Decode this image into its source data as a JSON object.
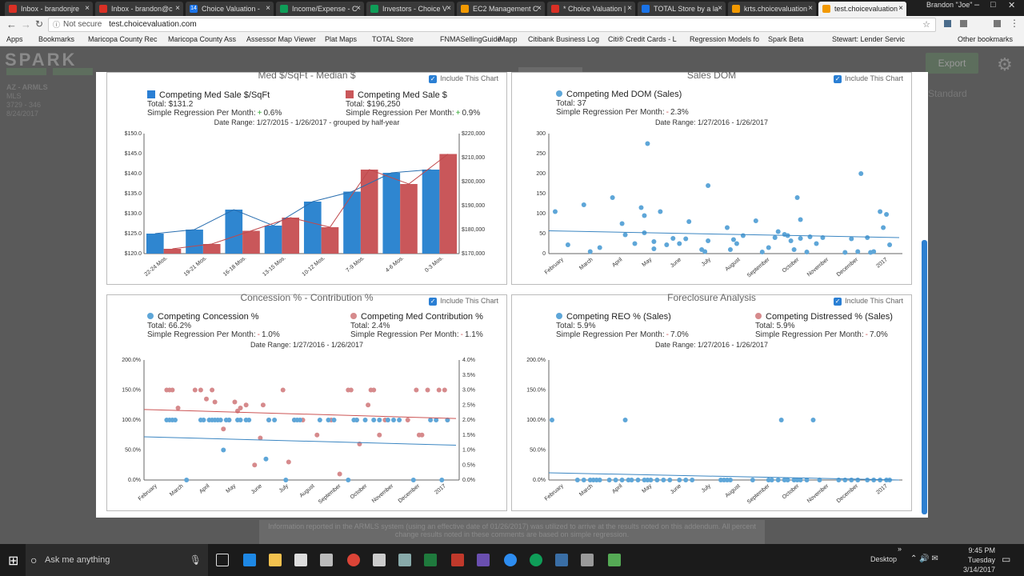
{
  "browser": {
    "tabs": [
      {
        "title": "Inbox - brandonjre",
        "color": "#d93025"
      },
      {
        "title": "Inbox - brandon@c",
        "color": "#d93025"
      },
      {
        "title": "Choice Valuation -",
        "color": "#1a73e8",
        "prefix": "14"
      },
      {
        "title": "Income/Expense - C",
        "color": "#0f9d58"
      },
      {
        "title": "Investors - Choice V",
        "color": "#0f9d58"
      },
      {
        "title": "EC2 Management C",
        "color": "#f29900"
      },
      {
        "title": "* Choice Valuation |",
        "color": "#d93025"
      },
      {
        "title": "TOTAL Store by a la",
        "color": "#1a73e8"
      },
      {
        "title": "krts.choicevaluation",
        "color": "#f29900"
      },
      {
        "title": "test.choicevaluation",
        "color": "#f29900"
      }
    ],
    "user": "Brandon \"Joe\"",
    "not_secure": "Not secure",
    "url": "test.choicevaluation.com",
    "bookmarks": [
      "Apps",
      "Bookmarks",
      "Maricopa County Rec",
      "Maricopa County Ass",
      "Assessor Map Viewer",
      "Plat Maps",
      "TOTAL Store",
      "FNMASellingGuide",
      "iMapp",
      "Citibank Business Log",
      "Citi® Credit Cards - L",
      "Regression Models fo",
      "Spark Beta",
      "Stewart: Lender Servic",
      "Other bookmarks"
    ]
  },
  "app": {
    "logo": "SPARK",
    "export_label": "Export",
    "left_info": [
      "AZ - ARMLS",
      "MLS",
      "3729 - 346",
      "8/24/2017"
    ],
    "right_info": "Standard"
  },
  "include_label": "Include This Chart",
  "panels": [
    {
      "title": "Med $/SqFt - Median $",
      "legend": [
        {
          "name": "Competing Med Sale $/SqFt",
          "total": "Total: $131.2",
          "reg_label": "Simple Regression Per Month:",
          "reg_value": "0.6%",
          "color": "#2a7fd4"
        },
        {
          "name": "Competing Med Sale $",
          "total": "Total: $196,250",
          "reg_label": "Simple Regression Per Month:",
          "reg_value": "0.9%",
          "color": "#c9575a"
        }
      ],
      "date_range": "Date Range: 1/27/2015 - 1/26/2017 - grouped by half-year"
    },
    {
      "title": "Sales DOM",
      "legend": [
        {
          "name": "Competing Med DOM (Sales)",
          "total": "Total: 37",
          "reg_label": "Simple Regression Per Month:",
          "reg_value": "2.3%",
          "color": "#5ea6d8"
        }
      ],
      "date_range": "Date Range: 1/27/2016 - 1/26/2017"
    },
    {
      "title": "Concession % - Contribution %",
      "legend": [
        {
          "name": "Competing Concession %",
          "total": "Total: 66.2%",
          "reg_label": "Simple Regression Per Month:",
          "reg_value": "1.0%",
          "color": "#5ea6d8"
        },
        {
          "name": "Competing Med Contribution %",
          "total": "Total: 2.4%",
          "reg_label": "Simple Regression Per Month:",
          "reg_value": "1.1%",
          "color": "#d68a8c"
        }
      ],
      "date_range": "Date Range: 1/27/2016 - 1/26/2017"
    },
    {
      "title": "Foreclosure Analysis",
      "legend": [
        {
          "name": "Competing REO % (Sales)",
          "total": "Total: 5.9%",
          "reg_label": "Simple Regression Per Month:",
          "reg_value": "7.0%",
          "color": "#5ea6d8"
        },
        {
          "name": "Competing Distressed % (Sales)",
          "total": "Total: 5.9%",
          "reg_label": "Simple Regression Per Month:",
          "reg_value": "7.0%",
          "color": "#d68a8c"
        }
      ],
      "date_range": "Date Range: 1/27/2016 - 1/26/2017"
    }
  ],
  "chart_data": [
    {
      "type": "bar",
      "categories": [
        "22-24 Mos.",
        "19-21 Mos.",
        "16-18 Mos.",
        "13-15 Mos.",
        "10-12 Mos.",
        "7-9 Mos.",
        "4-6 Mos.",
        "0-3 Mos."
      ],
      "series": [
        {
          "name": "Competing Med Sale $/SqFt",
          "axis": "left",
          "values": [
            125,
            126,
            131,
            127,
            133,
            135.5,
            140.2,
            141
          ]
        },
        {
          "name": "Competing Med Sale $",
          "axis": "right",
          "values": [
            172000,
            174000,
            179500,
            185000,
            181000,
            205000,
            199000,
            211500
          ]
        }
      ],
      "ylim_left": [
        120,
        150
      ],
      "yticks_left": [
        "$120.0",
        "$125.0",
        "$130.0",
        "$135.0",
        "$140.0",
        "$145.0",
        "$150.0"
      ],
      "ylim_right": [
        170000,
        220000
      ],
      "yticks_right": [
        "$170,000",
        "$180,000",
        "$190,000",
        "$200,000",
        "$210,000",
        "$220,000"
      ]
    },
    {
      "type": "scatter",
      "xlabels": [
        "February",
        "March",
        "April",
        "May",
        "June",
        "July",
        "August",
        "September",
        "October",
        "November",
        "December",
        "2017"
      ],
      "ylim": [
        0,
        300
      ],
      "yticks": [
        "0",
        "50",
        "100",
        "150",
        "200",
        "250",
        "300"
      ],
      "points": [
        [
          0.2,
          105
        ],
        [
          0.6,
          22
        ],
        [
          1.1,
          122
        ],
        [
          1.3,
          5
        ],
        [
          1.6,
          15
        ],
        [
          2.0,
          140
        ],
        [
          2.3,
          75
        ],
        [
          2.4,
          47
        ],
        [
          2.7,
          25
        ],
        [
          2.9,
          115
        ],
        [
          3.0,
          95
        ],
        [
          3.0,
          52
        ],
        [
          3.1,
          275
        ],
        [
          3.3,
          30
        ],
        [
          3.3,
          12
        ],
        [
          3.5,
          105
        ],
        [
          3.7,
          22
        ],
        [
          3.9,
          38
        ],
        [
          4.1,
          25
        ],
        [
          4.3,
          37
        ],
        [
          4.4,
          80
        ],
        [
          4.8,
          10
        ],
        [
          4.9,
          5
        ],
        [
          5.0,
          170
        ],
        [
          5.0,
          32
        ],
        [
          5.6,
          65
        ],
        [
          5.7,
          10
        ],
        [
          5.8,
          35
        ],
        [
          5.9,
          25
        ],
        [
          6.1,
          45
        ],
        [
          6.5,
          82
        ],
        [
          6.7,
          4
        ],
        [
          6.9,
          15
        ],
        [
          7.1,
          40
        ],
        [
          7.2,
          55
        ],
        [
          7.4,
          48
        ],
        [
          7.5,
          45
        ],
        [
          7.6,
          32
        ],
        [
          7.7,
          10
        ],
        [
          7.8,
          140
        ],
        [
          7.9,
          38
        ],
        [
          7.9,
          85
        ],
        [
          8.1,
          4
        ],
        [
          8.2,
          42
        ],
        [
          8.4,
          25
        ],
        [
          8.6,
          40
        ],
        [
          9.3,
          3
        ],
        [
          9.5,
          37
        ],
        [
          9.7,
          5
        ],
        [
          9.8,
          200
        ],
        [
          10.0,
          40
        ],
        [
          10.1,
          3
        ],
        [
          10.2,
          5
        ],
        [
          10.4,
          105
        ],
        [
          10.5,
          65
        ],
        [
          10.6,
          98
        ],
        [
          10.7,
          22
        ]
      ],
      "trend": [
        57,
        40
      ]
    },
    {
      "type": "scatter",
      "xlabels": [
        "February",
        "March",
        "April",
        "May",
        "June",
        "July",
        "August",
        "September",
        "October",
        "November",
        "December",
        "2017"
      ],
      "ylim_left": [
        0,
        200
      ],
      "yticks_left": [
        "0.0%",
        "50.0%",
        "100.0%",
        "150.0%",
        "200.0%"
      ],
      "ylim_right": [
        0,
        4
      ],
      "yticks_right": [
        "0.0%",
        "0.5%",
        "1.0%",
        "1.5%",
        "2.0%",
        "2.5%",
        "3.0%",
        "3.5%",
        "4.0%"
      ],
      "series": [
        {
          "name": "Competing Concession %",
          "axis": "left",
          "points": [
            [
              0.8,
              100
            ],
            [
              0.9,
              100
            ],
            [
              1.0,
              100
            ],
            [
              1.1,
              100
            ],
            [
              1.5,
              0
            ],
            [
              2.0,
              100
            ],
            [
              2.1,
              100
            ],
            [
              2.3,
              100
            ],
            [
              2.4,
              100
            ],
            [
              2.5,
              100
            ],
            [
              2.6,
              100
            ],
            [
              2.7,
              100
            ],
            [
              2.8,
              50
            ],
            [
              2.9,
              100
            ],
            [
              3.0,
              100
            ],
            [
              3.3,
              100
            ],
            [
              3.4,
              100
            ],
            [
              3.6,
              100
            ],
            [
              3.7,
              100
            ],
            [
              4.3,
              35
            ],
            [
              4.4,
              100
            ],
            [
              4.6,
              100
            ],
            [
              5.0,
              0
            ],
            [
              5.3,
              100
            ],
            [
              5.4,
              100
            ],
            [
              5.5,
              100
            ],
            [
              6.2,
              100
            ],
            [
              6.5,
              100
            ],
            [
              6.7,
              100
            ],
            [
              7.2,
              0
            ],
            [
              7.4,
              100
            ],
            [
              7.5,
              100
            ],
            [
              7.8,
              100
            ],
            [
              8.1,
              100
            ],
            [
              8.3,
              100
            ],
            [
              8.6,
              100
            ],
            [
              8.8,
              100
            ],
            [
              9.0,
              100
            ],
            [
              9.5,
              0
            ],
            [
              10.1,
              100
            ],
            [
              10.3,
              100
            ],
            [
              10.5,
              0
            ],
            [
              10.7,
              100
            ]
          ],
          "trend": [
            72,
            58
          ]
        },
        {
          "name": "Competing Med Contribution %",
          "axis": "right",
          "points": [
            [
              0.8,
              3.0
            ],
            [
              0.9,
              3.0
            ],
            [
              1.0,
              3.0
            ],
            [
              1.2,
              2.4
            ],
            [
              1.8,
              3.0
            ],
            [
              2.0,
              3.0
            ],
            [
              2.2,
              2.7
            ],
            [
              2.4,
              3.0
            ],
            [
              2.5,
              2.6
            ],
            [
              2.8,
              1.7
            ],
            [
              3.0,
              2.0
            ],
            [
              3.2,
              2.6
            ],
            [
              3.3,
              2.3
            ],
            [
              3.4,
              2.4
            ],
            [
              3.6,
              2.5
            ],
            [
              3.9,
              0.5
            ],
            [
              4.1,
              1.4
            ],
            [
              4.2,
              2.5
            ],
            [
              4.4,
              2.0
            ],
            [
              4.9,
              3.0
            ],
            [
              5.1,
              0.6
            ],
            [
              5.3,
              2.0
            ],
            [
              5.6,
              2.0
            ],
            [
              6.1,
              1.5
            ],
            [
              6.6,
              2.0
            ],
            [
              6.9,
              0.2
            ],
            [
              7.2,
              3.0
            ],
            [
              7.3,
              3.0
            ],
            [
              7.5,
              2.0
            ],
            [
              7.6,
              1.2
            ],
            [
              7.9,
              2.5
            ],
            [
              8.0,
              3.0
            ],
            [
              8.1,
              3.0
            ],
            [
              8.3,
              1.5
            ],
            [
              8.5,
              2.0
            ],
            [
              9.3,
              2.0
            ],
            [
              9.6,
              3.0
            ],
            [
              9.7,
              1.5
            ],
            [
              9.8,
              1.5
            ],
            [
              10.0,
              3.0
            ],
            [
              10.4,
              3.0
            ],
            [
              10.6,
              3.0
            ],
            [
              10.7,
              2.0
            ]
          ],
          "trend": [
            2.35,
            2.05
          ]
        }
      ]
    },
    {
      "type": "scatter",
      "xlabels": [
        "February",
        "March",
        "April",
        "May",
        "June",
        "July",
        "August",
        "September",
        "October",
        "November",
        "December",
        "2017"
      ],
      "ylim": [
        0,
        200
      ],
      "yticks": [
        "0.0%",
        "50.0%",
        "100.0%",
        "150.0%",
        "200.0%"
      ],
      "series": [
        {
          "name": "Competing REO % (Sales)",
          "points": [
            [
              0.1,
              100
            ],
            [
              2.4,
              100
            ],
            [
              7.3,
              100
            ],
            [
              8.3,
              100
            ],
            [
              0.9,
              0
            ],
            [
              1.1,
              0
            ],
            [
              1.3,
              0
            ],
            [
              1.4,
              0
            ],
            [
              1.5,
              0
            ],
            [
              1.6,
              0
            ],
            [
              1.9,
              0
            ],
            [
              2.1,
              0
            ],
            [
              2.3,
              0
            ],
            [
              2.5,
              0
            ],
            [
              2.6,
              0
            ],
            [
              2.8,
              0
            ],
            [
              3.0,
              0
            ],
            [
              3.1,
              0
            ],
            [
              3.2,
              0
            ],
            [
              3.4,
              0
            ],
            [
              3.6,
              0
            ],
            [
              3.8,
              0
            ],
            [
              4.1,
              0
            ],
            [
              4.3,
              0
            ],
            [
              4.5,
              0
            ],
            [
              5.4,
              0
            ],
            [
              5.5,
              0
            ],
            [
              5.6,
              0
            ],
            [
              5.7,
              0
            ],
            [
              6.4,
              0
            ],
            [
              6.9,
              0
            ],
            [
              7.0,
              0
            ],
            [
              7.2,
              0
            ],
            [
              7.4,
              0
            ],
            [
              7.5,
              0
            ],
            [
              7.7,
              0
            ],
            [
              7.8,
              0
            ],
            [
              7.9,
              0
            ],
            [
              8.1,
              0
            ],
            [
              8.5,
              0
            ],
            [
              9.1,
              0
            ],
            [
              9.3,
              0
            ],
            [
              9.5,
              0
            ],
            [
              9.7,
              0
            ],
            [
              10.0,
              0
            ],
            [
              10.2,
              0
            ],
            [
              10.4,
              0
            ],
            [
              10.6,
              0
            ],
            [
              10.7,
              0
            ]
          ],
          "trend": [
            12,
            0
          ]
        },
        {
          "name": "Competing Distressed % (Sales)",
          "points": [],
          "trend": [
            12,
            0
          ]
        }
      ]
    }
  ],
  "taskbar": {
    "search_placeholder": "Ask me anything",
    "desktop": "Desktop",
    "time": "9:45 PM",
    "day": "Tuesday",
    "date": "3/14/2017"
  },
  "footer_notice": "Information reported in the ARMLS system (using an effective date of 01/26/2017) was utilized to arrive at the results noted on this addendum. All percent change results noted in these comments are based on simple regression."
}
